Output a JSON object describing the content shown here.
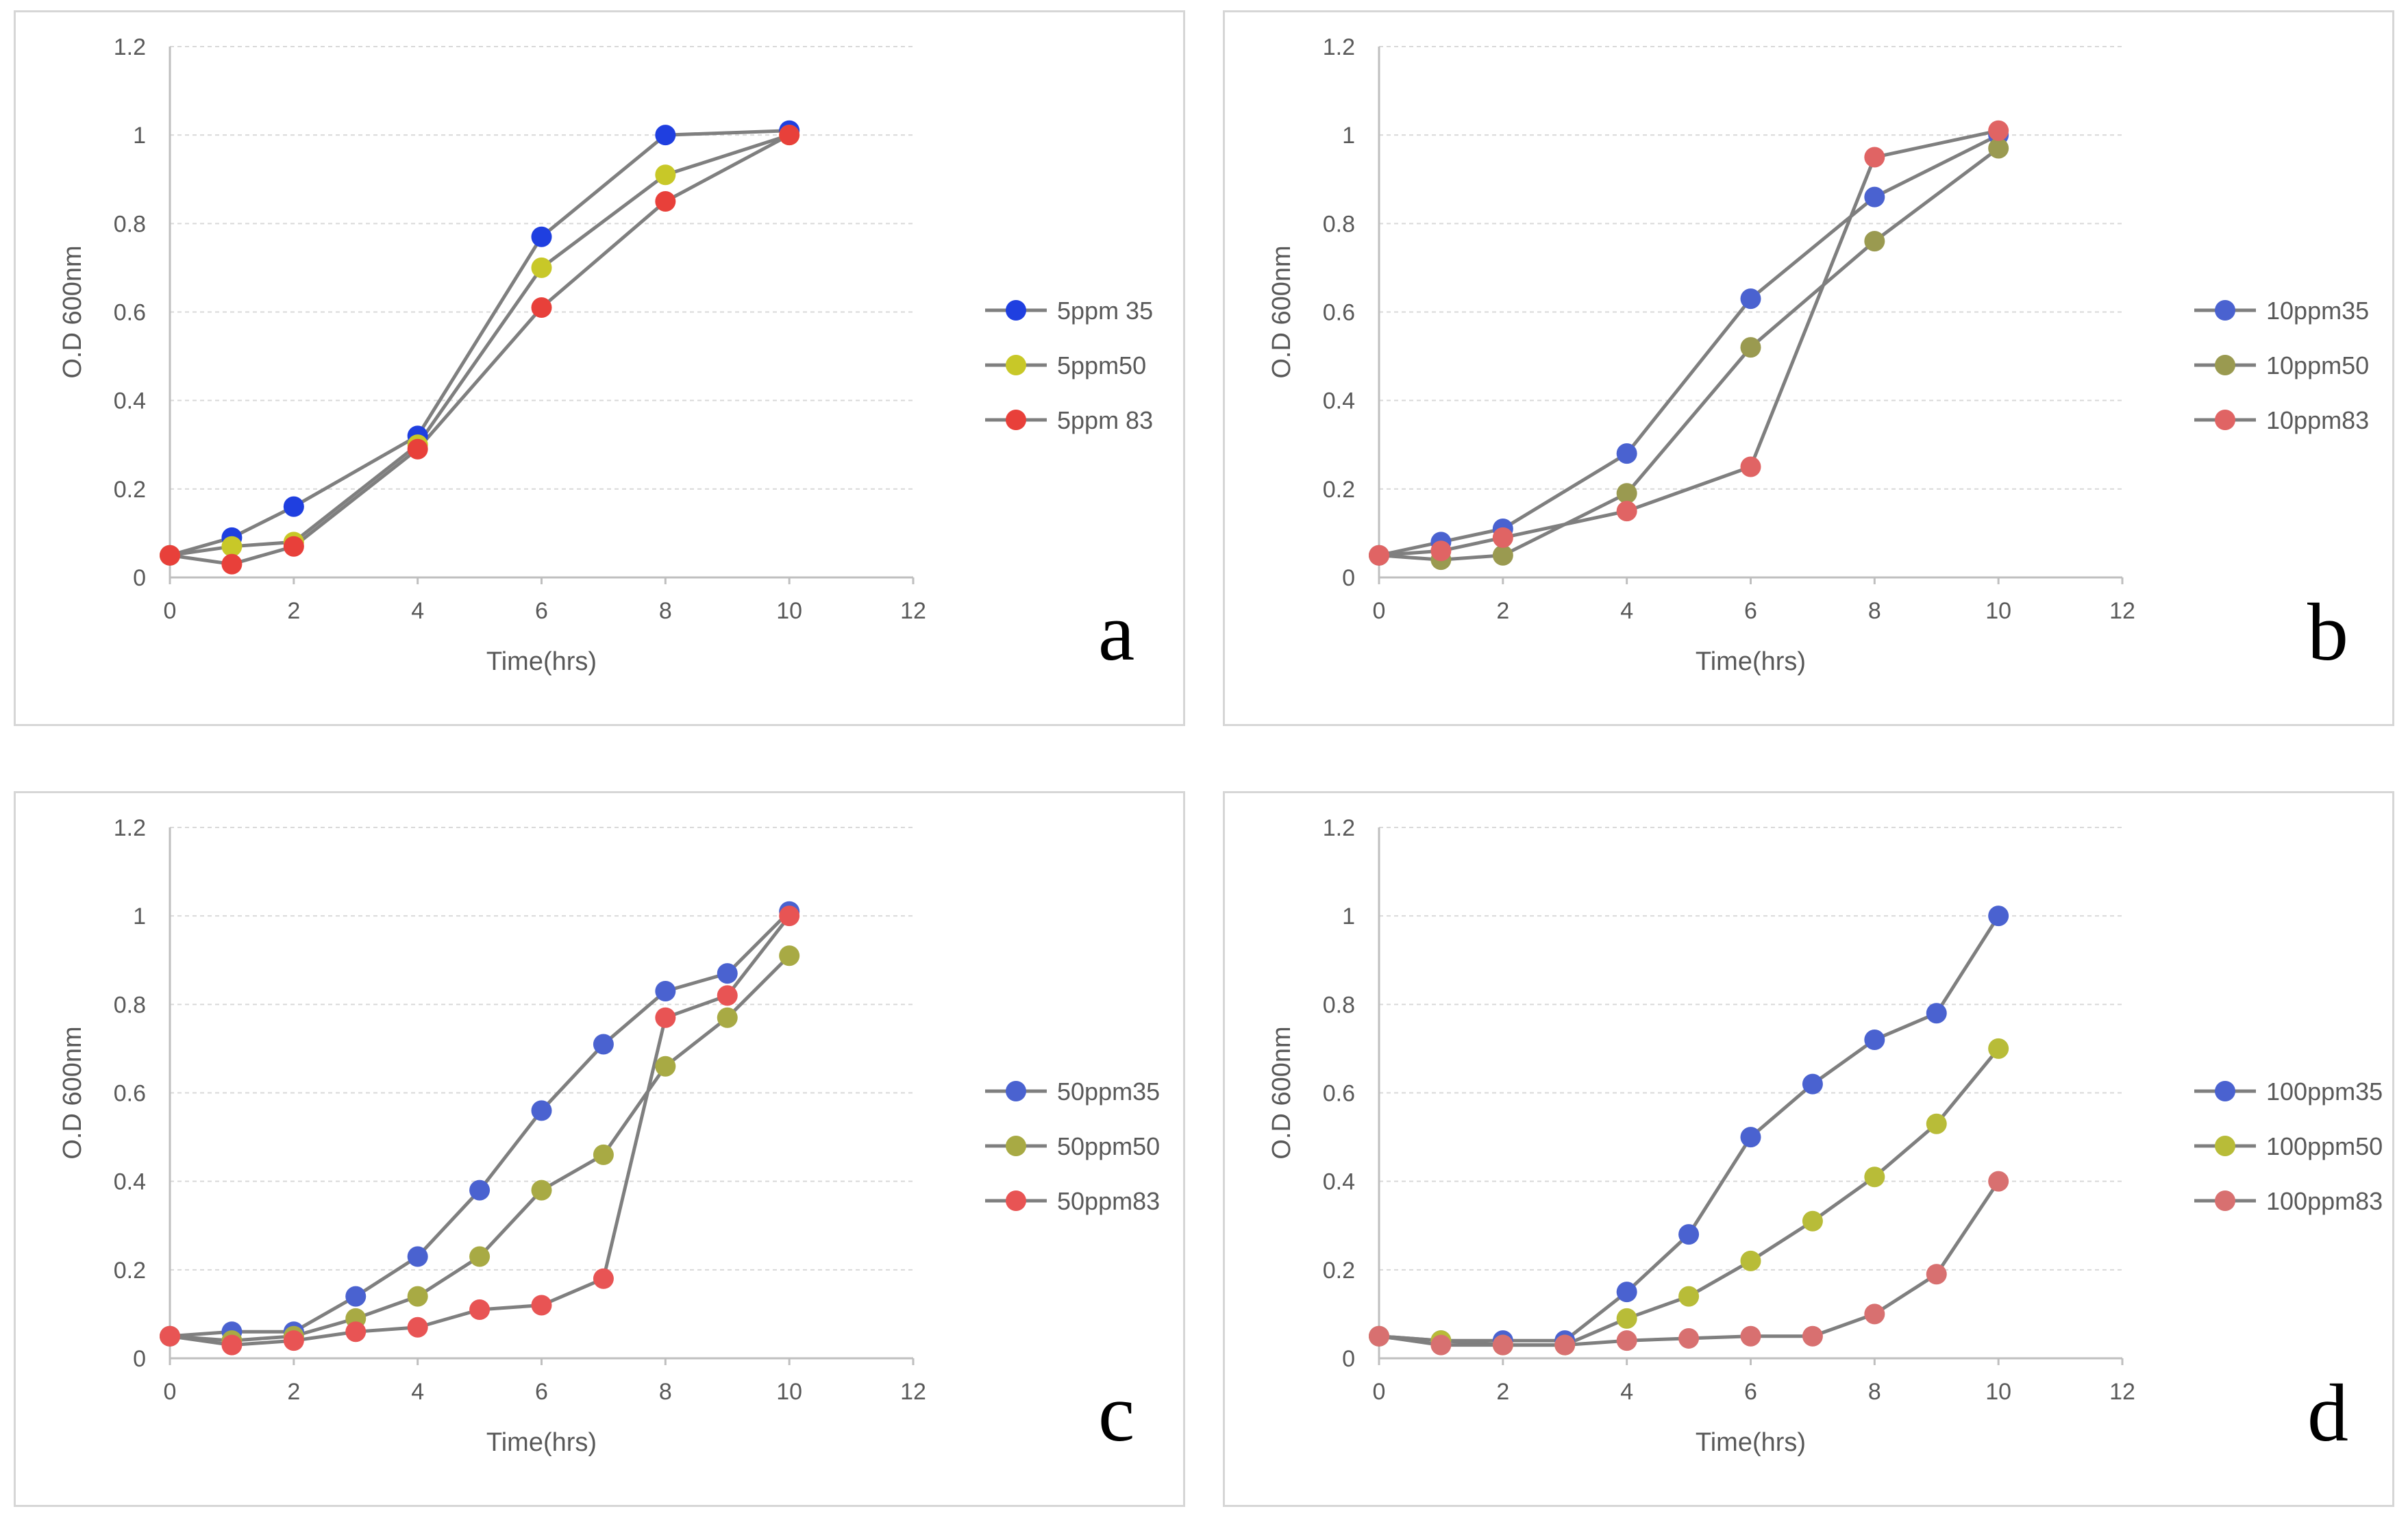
{
  "chart_data": [
    {
      "type": "line",
      "panel_label": "a",
      "xlabel": "Time(hrs)",
      "ylabel": "O.D 600nm",
      "xlim": [
        0,
        12
      ],
      "ylim": [
        0,
        1.2
      ],
      "xticks": [
        "0",
        "2",
        "4",
        "6",
        "8",
        "10",
        "12"
      ],
      "yticks": [
        "0",
        "0.2",
        "0.4",
        "0.6",
        "0.8",
        "1",
        "1.2"
      ],
      "grid": true,
      "legend": "right",
      "series": [
        {
          "name": "5ppm 35",
          "color": "#1f3fe0",
          "x": [
            0,
            1,
            2,
            4,
            6,
            8,
            10
          ],
          "values": [
            0.05,
            0.09,
            0.16,
            0.32,
            0.77,
            1.0,
            1.01
          ]
        },
        {
          "name": "5ppm50",
          "color": "#c8c828",
          "x": [
            0,
            1,
            2,
            4,
            6,
            8,
            10
          ],
          "values": [
            0.05,
            0.07,
            0.08,
            0.3,
            0.7,
            0.91,
            1.0
          ]
        },
        {
          "name": "5ppm 83",
          "color": "#e8403a",
          "x": [
            0,
            1,
            2,
            4,
            6,
            8,
            10
          ],
          "values": [
            0.05,
            0.03,
            0.07,
            0.29,
            0.61,
            0.85,
            1.0
          ]
        }
      ]
    },
    {
      "type": "line",
      "panel_label": "b",
      "xlabel": "Time(hrs)",
      "ylabel": "O.D 600nm",
      "xlim": [
        0,
        12
      ],
      "ylim": [
        0,
        1.2
      ],
      "xticks": [
        "0",
        "2",
        "4",
        "6",
        "8",
        "10",
        "12"
      ],
      "yticks": [
        "0",
        "0.2",
        "0.4",
        "0.6",
        "0.8",
        "1",
        "1.2"
      ],
      "grid": true,
      "legend": "right",
      "series": [
        {
          "name": "10ppm35",
          "color": "#4a62d0",
          "x": [
            0,
            1,
            2,
            4,
            6,
            8,
            10
          ],
          "values": [
            0.05,
            0.08,
            0.11,
            0.28,
            0.63,
            0.86,
            1.0
          ]
        },
        {
          "name": "10ppm50",
          "color": "#9a9a50",
          "x": [
            0,
            1,
            2,
            4,
            6,
            8,
            10
          ],
          "values": [
            0.05,
            0.04,
            0.05,
            0.19,
            0.52,
            0.76,
            0.97
          ]
        },
        {
          "name": "10ppm83",
          "color": "#e06464",
          "x": [
            0,
            1,
            2,
            4,
            6,
            8,
            10
          ],
          "values": [
            0.05,
            0.06,
            0.09,
            0.15,
            0.25,
            0.95,
            1.01
          ]
        }
      ]
    },
    {
      "type": "line",
      "panel_label": "c",
      "xlabel": "Time(hrs)",
      "ylabel": "O.D 600nm",
      "xlim": [
        0,
        12
      ],
      "ylim": [
        0,
        1.2
      ],
      "xticks": [
        "0",
        "2",
        "4",
        "6",
        "8",
        "10",
        "12"
      ],
      "yticks": [
        "0",
        "0.2",
        "0.4",
        "0.6",
        "0.8",
        "1",
        "1.2"
      ],
      "grid": true,
      "legend": "right",
      "series": [
        {
          "name": "50ppm35",
          "color": "#4a62d0",
          "x": [
            0,
            1,
            2,
            3,
            4,
            5,
            6,
            7,
            8,
            9,
            10
          ],
          "values": [
            0.05,
            0.06,
            0.06,
            0.14,
            0.23,
            0.38,
            0.56,
            0.71,
            0.83,
            0.87,
            1.01
          ]
        },
        {
          "name": "50ppm50",
          "color": "#a8aa44",
          "x": [
            0,
            1,
            2,
            3,
            4,
            5,
            6,
            7,
            8,
            9,
            10
          ],
          "values": [
            0.05,
            0.04,
            0.05,
            0.09,
            0.14,
            0.23,
            0.38,
            0.46,
            0.66,
            0.77,
            0.91
          ]
        },
        {
          "name": "50ppm83",
          "color": "#e85454",
          "x": [
            0,
            1,
            2,
            3,
            4,
            5,
            6,
            7,
            8,
            9,
            10
          ],
          "values": [
            0.05,
            0.03,
            0.04,
            0.06,
            0.07,
            0.11,
            0.12,
            0.18,
            0.77,
            0.82,
            1.0
          ]
        }
      ]
    },
    {
      "type": "line",
      "panel_label": "d",
      "xlabel": "Time(hrs)",
      "ylabel": "O.D 600nm",
      "xlim": [
        0,
        12
      ],
      "ylim": [
        0,
        1.2
      ],
      "xticks": [
        "0",
        "2",
        "4",
        "6",
        "8",
        "10",
        "12"
      ],
      "yticks": [
        "0",
        "0.2",
        "0.4",
        "0.6",
        "0.8",
        "1",
        "1.2"
      ],
      "grid": true,
      "legend": "right",
      "series": [
        {
          "name": "100ppm35",
          "color": "#4a62d0",
          "x": [
            0,
            1,
            2,
            3,
            4,
            5,
            6,
            7,
            8,
            9,
            10
          ],
          "values": [
            0.05,
            0.04,
            0.04,
            0.04,
            0.15,
            0.28,
            0.5,
            0.62,
            0.72,
            0.78,
            1.0
          ]
        },
        {
          "name": "100ppm50",
          "color": "#b8bc38",
          "x": [
            0,
            1,
            2,
            3,
            4,
            5,
            6,
            7,
            8,
            9,
            10
          ],
          "values": [
            0.05,
            0.04,
            0.03,
            0.03,
            0.09,
            0.14,
            0.22,
            0.31,
            0.41,
            0.53,
            0.7
          ]
        },
        {
          "name": "100ppm83",
          "color": "#d87070",
          "x": [
            0,
            1,
            2,
            3,
            4,
            5,
            6,
            7,
            8,
            9,
            10
          ],
          "values": [
            0.05,
            0.03,
            0.03,
            0.03,
            0.04,
            0.045,
            0.05,
            0.05,
            0.1,
            0.19,
            0.4
          ]
        }
      ]
    }
  ]
}
